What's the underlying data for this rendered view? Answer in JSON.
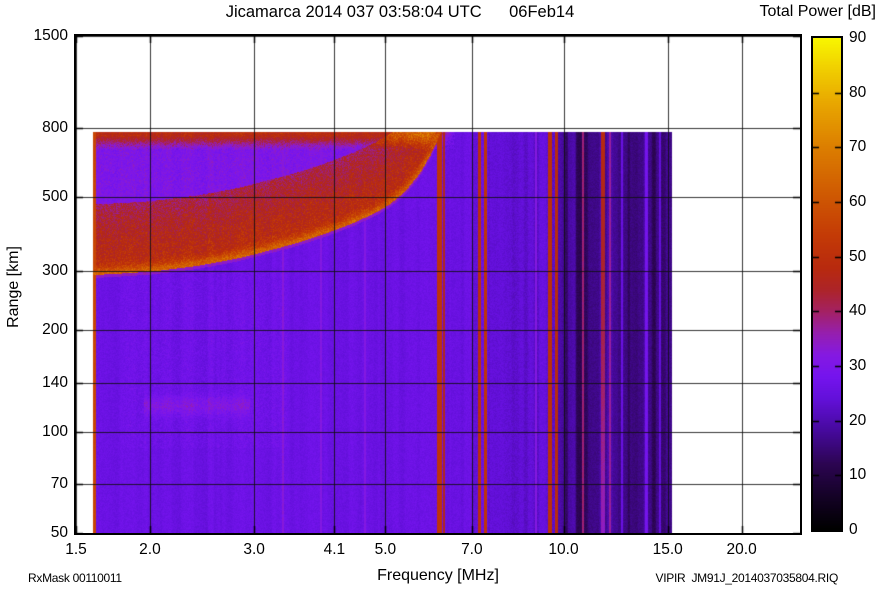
{
  "title": "Jicamarca 2014 037 03:58:04 UTC      06Feb14",
  "colorbar": {
    "title": "Total Power [dB]",
    "min": 0,
    "max": 90,
    "tick_labels": [
      "0",
      "10",
      "20",
      "30",
      "40",
      "50",
      "60",
      "70",
      "80",
      "90"
    ]
  },
  "axes": {
    "xlabel": "Frequency [MHz]",
    "ylabel": "Range [km]",
    "x_tick_labels": [
      "1.5",
      "2.0",
      "3.0",
      "4.1",
      "5.0",
      "7.0",
      "10.0",
      "15.0",
      "20.0"
    ],
    "x_tick_values": [
      1.5,
      2.0,
      3.0,
      4.1,
      5.0,
      7.0,
      10.0,
      15.0,
      20.0
    ],
    "y_tick_labels": [
      "50",
      "70",
      "100",
      "140",
      "200",
      "300",
      "500",
      "800",
      "1500"
    ],
    "y_tick_values": [
      50,
      70,
      100,
      140,
      200,
      300,
      500,
      800,
      1500
    ]
  },
  "footer": {
    "rx_mask": "RxMask 00110011",
    "file_name": "VIPIR  JM91J_2014037035804.RIQ"
  },
  "chart_data": {
    "type": "heatmap",
    "title": "Jicamarca 2014 037 03:58:04 UTC 06Feb14",
    "xlabel": "Frequency [MHz]",
    "ylabel": "Range [km]",
    "x_scale": "log",
    "y_scale": "log",
    "xlim": [
      1.5,
      25.1
    ],
    "ylim": [
      50,
      1500
    ],
    "x_ticks": [
      1.5,
      2.0,
      3.0,
      4.1,
      5.0,
      7.0,
      10.0,
      15.0,
      20.0
    ],
    "y_ticks": [
      50,
      70,
      100,
      140,
      200,
      300,
      500,
      800,
      1500
    ],
    "grid": true,
    "colorbar": {
      "label": "Total Power [dB]",
      "min": 0,
      "max": 90,
      "ticks": [
        0,
        10,
        20,
        30,
        40,
        50,
        60,
        70,
        80,
        90
      ],
      "color_stops": [
        [
          0,
          "#000000"
        ],
        [
          6,
          "#140226"
        ],
        [
          12,
          "#2c0552"
        ],
        [
          18,
          "#46099c"
        ],
        [
          24,
          "#6310da"
        ],
        [
          28,
          "#7514ee"
        ],
        [
          32,
          "#8519e2"
        ],
        [
          36,
          "#961fae"
        ],
        [
          40,
          "#a42162"
        ],
        [
          44,
          "#ad2428"
        ],
        [
          48,
          "#b82a0e"
        ],
        [
          54,
          "#c43b06"
        ],
        [
          62,
          "#d05c02"
        ],
        [
          70,
          "#dc7e00"
        ],
        [
          78,
          "#e8a600"
        ],
        [
          84,
          "#f0cc00"
        ],
        [
          90,
          "#f8f600"
        ]
      ]
    },
    "signal_extent": {
      "f_min_mhz": 1.6,
      "f_max_mhz": 15.2,
      "range_min_km": 50,
      "range_max_km": 780
    },
    "background_power_db": {
      "below_6mhz": 26,
      "mid_6_to_10mhz": 24.5,
      "dark_band_above_10mhz": 16
    },
    "f_region_echo": {
      "power_db": 48,
      "core_power_db": 60,
      "critical_frequency_mhz": 6.2,
      "spread_factor": 1.62,
      "trace_points_mhz_km": [
        [
          1.6,
          293
        ],
        [
          2.0,
          300
        ],
        [
          2.4,
          312
        ],
        [
          2.8,
          328
        ],
        [
          3.2,
          348
        ],
        [
          3.6,
          368
        ],
        [
          4.0,
          392
        ],
        [
          4.4,
          418
        ],
        [
          4.8,
          448
        ],
        [
          5.1,
          478
        ],
        [
          5.4,
          520
        ],
        [
          5.7,
          585
        ],
        [
          5.95,
          665
        ],
        [
          6.1,
          730
        ],
        [
          6.2,
          780
        ]
      ]
    },
    "top_scatter_band": {
      "range_km": [
        690,
        780
      ],
      "f_max_mhz": 6.45,
      "power_db": 46
    },
    "sporadic_e": {
      "f_range_mhz": [
        1.95,
        2.95
      ],
      "range_km": 120,
      "power_db": 33
    },
    "rfi_lines_mhz": [
      {
        "f": 1.61,
        "w": 4,
        "v": 57
      },
      {
        "f": 3.36,
        "w": 2,
        "v": 32
      },
      {
        "f": 3.89,
        "w": 2,
        "v": 32
      },
      {
        "f": 4.62,
        "w": 2,
        "v": 31
      },
      {
        "f": 6.17,
        "w": 5,
        "v": 52
      },
      {
        "f": 6.28,
        "w": 2,
        "v": 46
      },
      {
        "f": 7.22,
        "w": 3,
        "v": 50
      },
      {
        "f": 7.38,
        "w": 3,
        "v": 50
      },
      {
        "f": 8.98,
        "w": 2,
        "v": 33
      },
      {
        "f": 9.47,
        "w": 4,
        "v": 51
      },
      {
        "f": 9.74,
        "w": 3,
        "v": 49
      },
      {
        "f": 10.8,
        "w": 2,
        "v": 40
      },
      {
        "f": 11.65,
        "w": 4,
        "v": 48,
        "fade": true
      },
      {
        "f": 11.98,
        "w": 2,
        "v": 36
      },
      {
        "f": 12.55,
        "w": 2,
        "v": 25
      },
      {
        "f": 13.83,
        "w": 3,
        "v": 27
      },
      {
        "f": 14.57,
        "w": 2,
        "v": 24
      }
    ]
  }
}
